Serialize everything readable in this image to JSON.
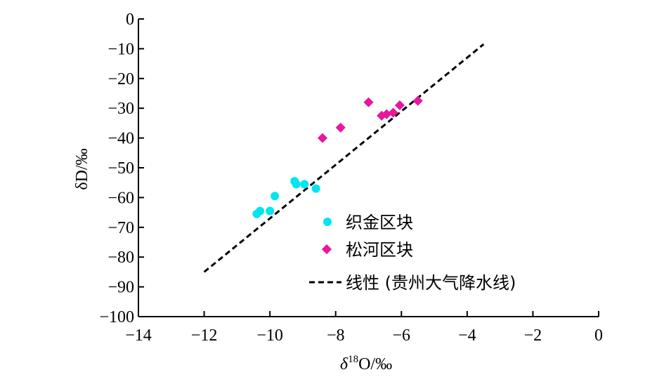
{
  "chart_data": {
    "type": "scatter",
    "xlabel_delta": "δ",
    "xlabel_sup": "18",
    "xlabel_rest": "O/‰",
    "ylabel": "δD/‰",
    "xlim": [
      -14,
      0
    ],
    "ylim": [
      -100,
      0
    ],
    "xticks": [
      -14,
      -12,
      -10,
      -8,
      -6,
      -4,
      -2,
      0
    ],
    "yticks": [
      0,
      -10,
      -20,
      -30,
      -40,
      -50,
      -60,
      -70,
      -80,
      -90,
      -100
    ],
    "xtick_labels": [
      "−14",
      "−12",
      "−10",
      "−8",
      "−6",
      "−4",
      "−2",
      "0"
    ],
    "ytick_labels": [
      "0",
      "−10",
      "−20",
      "−30",
      "−40",
      "−50",
      "−60",
      "−70",
      "−80",
      "−90",
      "−100"
    ],
    "legend_position": "center-right",
    "series": [
      {
        "name": "织金区块",
        "marker": "circle",
        "color": "#00e5ee",
        "points": [
          {
            "x": -10.4,
            "y": -65.5
          },
          {
            "x": -10.3,
            "y": -64.5
          },
          {
            "x": -10.0,
            "y": -64.5
          },
          {
            "x": -9.85,
            "y": -59.5
          },
          {
            "x": -9.25,
            "y": -54.5
          },
          {
            "x": -9.2,
            "y": -55.5
          },
          {
            "x": -8.95,
            "y": -55.5
          },
          {
            "x": -8.6,
            "y": -57.0
          }
        ]
      },
      {
        "name": "松河区块",
        "marker": "diamond",
        "color": "#e8179c",
        "points": [
          {
            "x": -8.4,
            "y": -40.0
          },
          {
            "x": -7.85,
            "y": -36.5
          },
          {
            "x": -7.0,
            "y": -28.0
          },
          {
            "x": -6.6,
            "y": -32.5
          },
          {
            "x": -6.45,
            "y": -32.0
          },
          {
            "x": -6.25,
            "y": -31.5
          },
          {
            "x": -6.05,
            "y": -29.0
          },
          {
            "x": -5.5,
            "y": -27.5
          }
        ]
      },
      {
        "name": "线性 (贵州大气降水线)",
        "type": "line",
        "style": "dashed",
        "color": "#000000",
        "points": [
          {
            "x": -12.0,
            "y": -85.0
          },
          {
            "x": -3.5,
            "y": -8.5
          }
        ]
      }
    ]
  }
}
